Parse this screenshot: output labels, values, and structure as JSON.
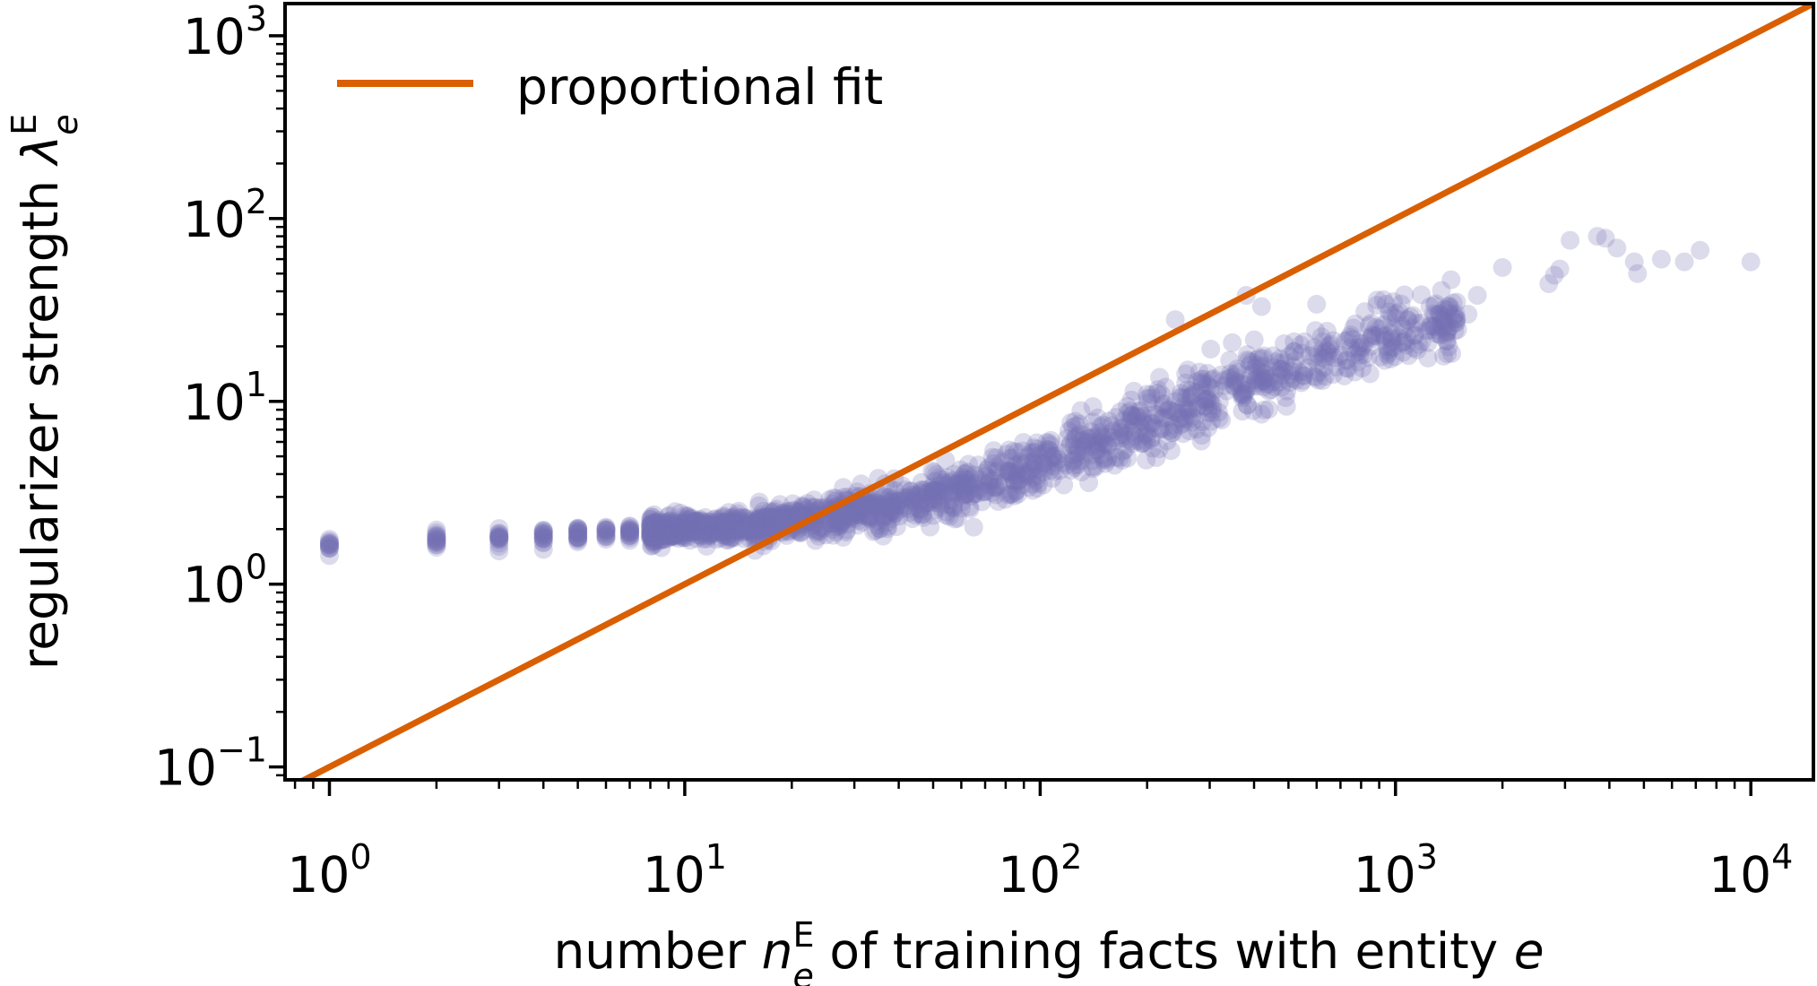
{
  "chart_data": {
    "type": "scatter",
    "scale": {
      "x": "log",
      "y": "log"
    },
    "xlim": [
      0.75,
      15000
    ],
    "ylim": [
      0.085,
      1500
    ],
    "xlabel": {
      "pre": "number ",
      "symbol": "n",
      "sub": "e",
      "sup": "E",
      "post": " of training facts with entity ",
      "var": "e"
    },
    "ylabel": {
      "pre": "regularizer strength ",
      "symbol": "λ",
      "sub": "e",
      "sup": "E"
    },
    "x_ticks": [
      {
        "base": "10",
        "exp": "0",
        "value": 1
      },
      {
        "base": "10",
        "exp": "1",
        "value": 10
      },
      {
        "base": "10",
        "exp": "2",
        "value": 100
      },
      {
        "base": "10",
        "exp": "3",
        "value": 1000
      },
      {
        "base": "10",
        "exp": "4",
        "value": 10000
      }
    ],
    "y_ticks": [
      {
        "base": "10",
        "exp": "−1",
        "value": 0.1
      },
      {
        "base": "10",
        "exp": "0",
        "value": 1
      },
      {
        "base": "10",
        "exp": "1",
        "value": 10
      },
      {
        "base": "10",
        "exp": "2",
        "value": 100
      },
      {
        "base": "10",
        "exp": "3",
        "value": 1000
      }
    ],
    "grid": false,
    "legend": {
      "position": "top-left",
      "entries": [
        "proportional fit"
      ]
    },
    "series": [
      {
        "kind": "scatter",
        "color": "#7570b3",
        "alpha": 0.25,
        "points_discrete": [
          [
            1,
            1.58
          ],
          [
            1,
            1.62
          ],
          [
            1,
            1.66
          ],
          [
            2,
            1.7
          ],
          [
            2,
            1.78
          ],
          [
            2,
            1.86
          ],
          [
            2,
            1.74
          ],
          [
            2,
            1.82
          ],
          [
            3,
            1.74
          ],
          [
            3,
            1.82
          ],
          [
            3,
            1.9
          ],
          [
            3,
            1.78
          ],
          [
            3,
            1.86
          ],
          [
            4,
            1.76
          ],
          [
            4,
            1.84
          ],
          [
            4,
            1.92
          ],
          [
            4,
            1.7
          ],
          [
            4,
            1.98
          ],
          [
            4,
            1.88
          ],
          [
            5,
            1.8
          ],
          [
            5,
            1.88
          ],
          [
            5,
            1.96
          ],
          [
            5,
            1.74
          ],
          [
            5,
            2.02
          ],
          [
            5,
            1.92
          ],
          [
            6,
            1.82
          ],
          [
            6,
            1.9
          ],
          [
            6,
            1.98
          ],
          [
            6,
            1.76
          ],
          [
            6,
            2.05
          ],
          [
            6,
            1.94
          ],
          [
            7,
            1.85
          ],
          [
            7,
            1.93
          ],
          [
            7,
            2.01
          ],
          [
            7,
            1.79
          ],
          [
            7,
            2.08
          ],
          [
            7,
            1.97
          ]
        ],
        "trend": {
          "x": [
            8,
            10,
            15,
            20,
            30,
            50,
            70,
            100,
            150,
            200,
            300,
            500,
            700,
            1000,
            1500
          ],
          "y": [
            1.95,
            2.0,
            2.1,
            2.25,
            2.5,
            3.0,
            3.6,
            4.5,
            6.0,
            7.5,
            10.5,
            15.0,
            19.0,
            24.0,
            30.0
          ]
        },
        "n_cloud": 1600,
        "outliers": [
          [
            4.0,
            1.55
          ],
          [
            35,
            2.1
          ],
          [
            60,
            2.6
          ],
          [
            240,
            28
          ],
          [
            380,
            38
          ],
          [
            420,
            33
          ],
          [
            600,
            34
          ],
          [
            820,
            31
          ],
          [
            1100,
            29
          ],
          [
            1250,
            33
          ],
          [
            1600,
            30
          ],
          [
            1700,
            38
          ],
          [
            2000,
            54
          ],
          [
            2700,
            44
          ],
          [
            2800,
            49
          ],
          [
            2900,
            53
          ],
          [
            3100,
            76
          ],
          [
            3700,
            80
          ],
          [
            3900,
            78
          ],
          [
            4200,
            69
          ],
          [
            4700,
            58
          ],
          [
            4800,
            50
          ],
          [
            5600,
            60
          ],
          [
            6500,
            58
          ],
          [
            7200,
            67
          ],
          [
            10000,
            58
          ]
        ]
      },
      {
        "kind": "line",
        "name": "proportional fit",
        "color": "#d95f02",
        "slope": 0.1
      }
    ]
  }
}
